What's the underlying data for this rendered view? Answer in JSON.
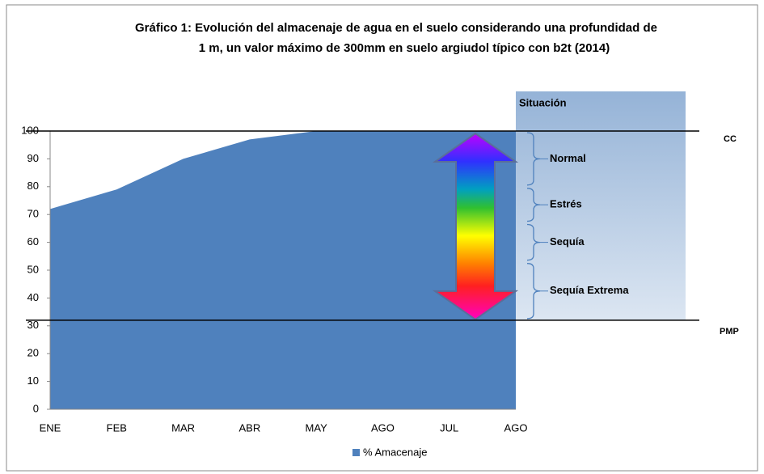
{
  "chart_data": {
    "type": "area",
    "title": [
      "Gráfico 1: Evolución del almacenaje de agua en el suelo considerando una profundidad de",
      "1 m,  un valor máximo de 300mm en suelo argiudol típico con b2t (2014)"
    ],
    "categories": [
      "ENE",
      "FEB",
      "MAR",
      "ABR",
      "MAY",
      "AGO",
      "JUL",
      "AGO"
    ],
    "series": [
      {
        "name": "% Amacenaje",
        "color": "#4f81bd",
        "values": [
          72,
          79,
          90,
          97,
          100,
          100,
          100,
          100
        ]
      }
    ],
    "ylim": [
      0,
      100
    ],
    "yticks": [
      0,
      10,
      20,
      30,
      40,
      50,
      60,
      70,
      80,
      90,
      100
    ],
    "reference_lines": [
      {
        "label": "CC",
        "value": 100
      },
      {
        "label": "PMP",
        "value": 32
      }
    ],
    "situation": {
      "title": "Situación",
      "levels": [
        {
          "label": "Normal",
          "from": 100,
          "to": 80
        },
        {
          "label": "Estrés",
          "from": 80,
          "to": 67
        },
        {
          "label": "Sequía",
          "from": 67,
          "to": 53
        },
        {
          "label": "Sequía Extrema",
          "from": 53,
          "to": 32
        }
      ]
    },
    "legend": "bottom"
  }
}
